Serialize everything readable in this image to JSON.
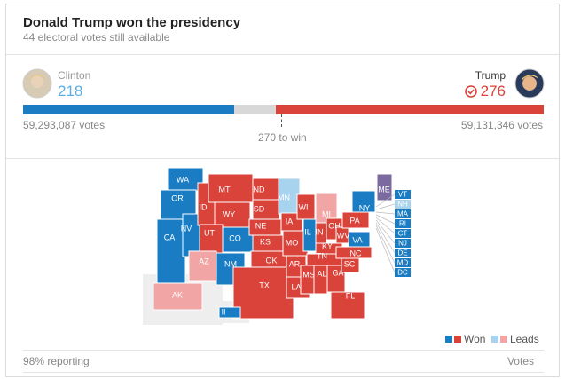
{
  "header": {
    "title": "Donald Trump won the presidency",
    "subtitle": "44 electoral votes still available"
  },
  "candidates": [
    {
      "name": "Clinton",
      "electoral_votes": 218,
      "popular_votes": "59,293,087 votes",
      "color": "#1a7dc3"
    },
    {
      "name": "Trump",
      "electoral_votes": 276,
      "popular_votes": "59,131,346 votes",
      "color": "#d9433a"
    }
  ],
  "win_threshold": "270 to win",
  "states": [
    {
      "label": "WA",
      "color": "#1a7dc3"
    },
    {
      "label": "OR",
      "color": "#1a7dc3"
    },
    {
      "label": "CA",
      "color": "#1a7dc3"
    },
    {
      "label": "NV",
      "color": "#1a7dc3"
    },
    {
      "label": "ID",
      "color": "#d9433a"
    },
    {
      "label": "MT",
      "color": "#d9433a"
    },
    {
      "label": "WY",
      "color": "#d9433a"
    },
    {
      "label": "UT",
      "color": "#d9433a"
    },
    {
      "label": "CO",
      "color": "#1a7dc3"
    },
    {
      "label": "AZ",
      "color": "#f2a5a5"
    },
    {
      "label": "NM",
      "color": "#1a7dc3"
    },
    {
      "label": "ND",
      "color": "#d9433a"
    },
    {
      "label": "SD",
      "color": "#d9433a"
    },
    {
      "label": "NE",
      "color": "#d9433a"
    },
    {
      "label": "KS",
      "color": "#d9433a"
    },
    {
      "label": "OK",
      "color": "#d9433a"
    },
    {
      "label": "TX",
      "color": "#d9433a"
    },
    {
      "label": "MN",
      "color": "#a7d3ee"
    },
    {
      "label": "IA",
      "color": "#d9433a"
    },
    {
      "label": "MO",
      "color": "#d9433a"
    },
    {
      "label": "AR",
      "color": "#d9433a"
    },
    {
      "label": "LA",
      "color": "#d9433a"
    },
    {
      "label": "WI",
      "color": "#d9433a"
    },
    {
      "label": "IL",
      "color": "#1a7dc3"
    },
    {
      "label": "MI",
      "color": "#f2a5a5"
    },
    {
      "label": "IN",
      "color": "#d9433a"
    },
    {
      "label": "OH",
      "color": "#d9433a"
    },
    {
      "label": "KY",
      "color": "#d9433a"
    },
    {
      "label": "TN",
      "color": "#d9433a"
    },
    {
      "label": "MS",
      "color": "#d9433a"
    },
    {
      "label": "AL",
      "color": "#d9433a"
    },
    {
      "label": "GA",
      "color": "#d9433a"
    },
    {
      "label": "FL",
      "color": "#d9433a"
    },
    {
      "label": "SC",
      "color": "#d9433a"
    },
    {
      "label": "NC",
      "color": "#d9433a"
    },
    {
      "label": "VA",
      "color": "#1a7dc3"
    },
    {
      "label": "WV",
      "color": "#d9433a"
    },
    {
      "label": "PA",
      "color": "#d9433a"
    },
    {
      "label": "NY",
      "color": "#1a7dc3"
    },
    {
      "label": "ME",
      "color": "#7a6aa0"
    },
    {
      "label": "AK",
      "color": "#f2a5a5"
    },
    {
      "label": "HI",
      "color": "#1a7dc3"
    }
  ],
  "small_states": [
    {
      "label": "VT",
      "color": "#1a7dc3"
    },
    {
      "label": "NH",
      "color": "#a7d3ee"
    },
    {
      "label": "MA",
      "color": "#1a7dc3"
    },
    {
      "label": "RI",
      "color": "#1a7dc3"
    },
    {
      "label": "CT",
      "color": "#1a7dc3"
    },
    {
      "label": "NJ",
      "color": "#1a7dc3"
    },
    {
      "label": "DE",
      "color": "#1a7dc3"
    },
    {
      "label": "MD",
      "color": "#1a7dc3"
    },
    {
      "label": "DC",
      "color": "#1a7dc3"
    }
  ],
  "legend": {
    "won": "Won",
    "leads": "Leads"
  },
  "footer": {
    "reporting": "98% reporting",
    "link": "Votes"
  }
}
